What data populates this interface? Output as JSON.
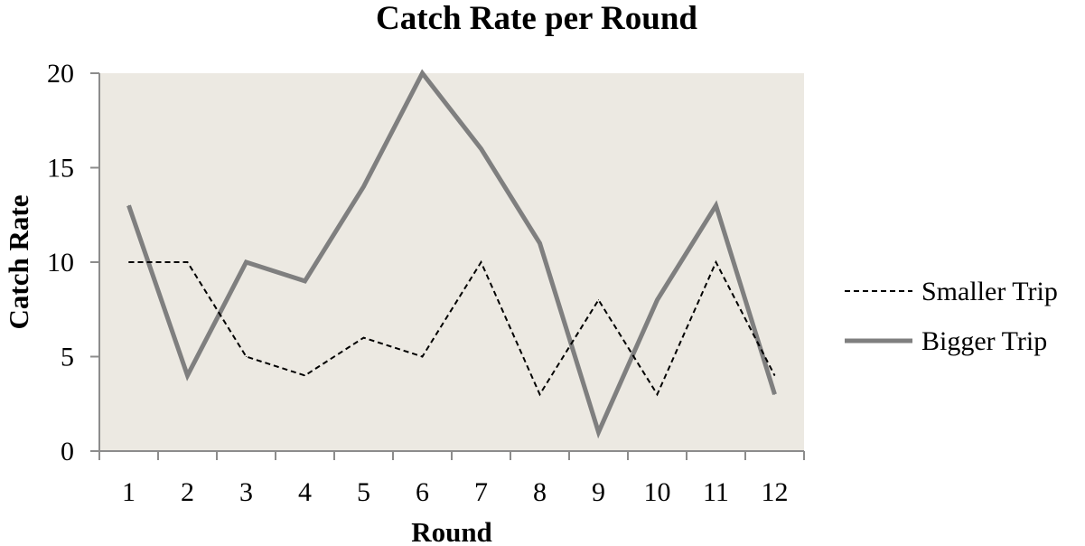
{
  "chart_data": {
    "type": "line",
    "title": "Catch Rate per Round",
    "xlabel": "Round",
    "ylabel": "Catch Rate",
    "categories": [
      "1",
      "2",
      "3",
      "4",
      "5",
      "6",
      "7",
      "8",
      "9",
      "10",
      "11",
      "12"
    ],
    "ylim": [
      0,
      20
    ],
    "yticks": [
      "0",
      "5",
      "10",
      "15",
      "20"
    ],
    "grid": false,
    "legend_position": "right",
    "plot_background": "#ece9e2",
    "series": [
      {
        "name": "Smaller Trip",
        "values": [
          10,
          10,
          5,
          4,
          6,
          5,
          10,
          3,
          8,
          3,
          10,
          4
        ],
        "color": "#000000",
        "style": "dashed"
      },
      {
        "name": "Bigger Trip",
        "values": [
          13,
          4,
          10,
          9,
          14,
          20,
          16,
          11,
          1,
          8,
          13,
          3
        ],
        "color": "#7f7f7f",
        "style": "solid"
      }
    ]
  }
}
